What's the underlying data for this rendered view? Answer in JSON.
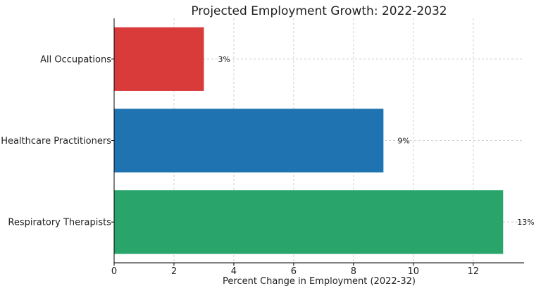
{
  "chart_data": {
    "type": "bar",
    "orientation": "horizontal",
    "title": "Projected Employment Growth: 2022-2032",
    "xlabel": "Percent Change in Employment (2022-32)",
    "ylabel": "",
    "xlim": [
      0,
      13.7
    ],
    "xticks": [
      0,
      2,
      4,
      6,
      8,
      10,
      12
    ],
    "grid": true,
    "categories": [
      "All Occupations",
      "Healthcare Practitioners",
      "Respiratory Therapists"
    ],
    "values": [
      3,
      9,
      13
    ],
    "data_labels": [
      "3%",
      "9%",
      "13%"
    ],
    "colors": [
      "#d93a3a",
      "#1f73b0",
      "#29a56c"
    ]
  }
}
